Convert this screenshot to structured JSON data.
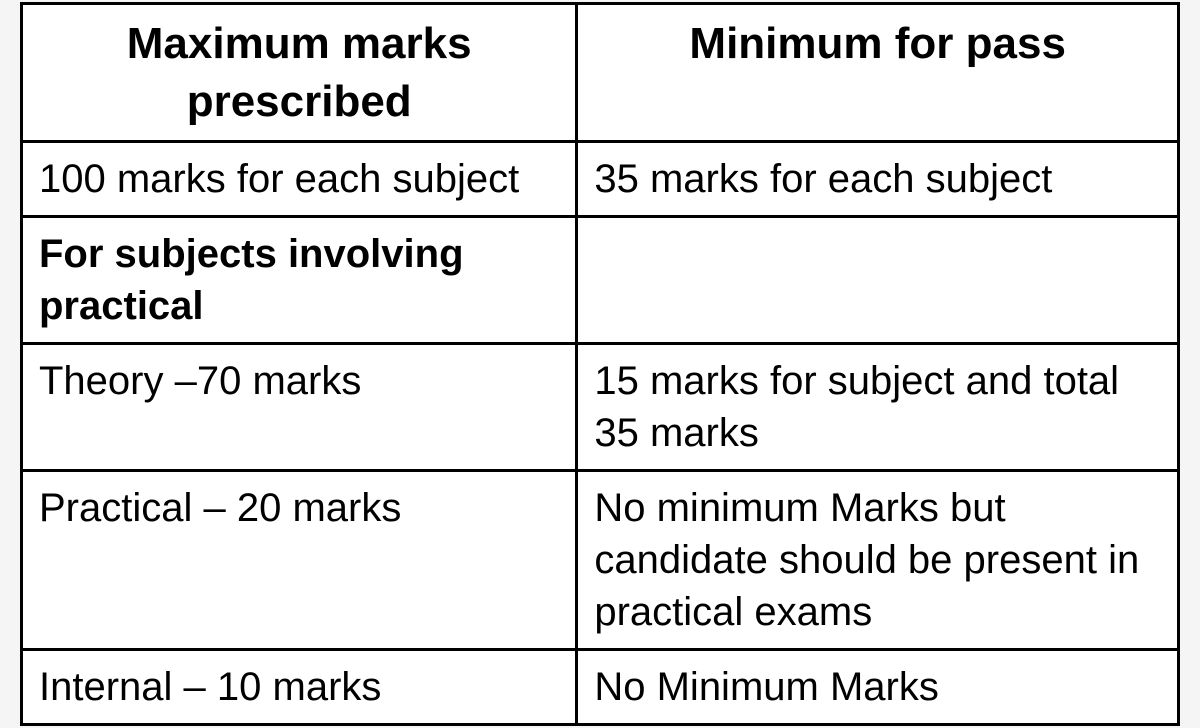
{
  "table": {
    "type": "table",
    "background_color": "#ffffff",
    "border_color": "#000000",
    "border_width": 3,
    "text_color": "#000000",
    "header_fontsize": 44,
    "body_fontsize": 40,
    "column_widths": [
      "48%",
      "52%"
    ],
    "columns": [
      "Maximum marks prescribed",
      "Minimum for pass"
    ],
    "rows": [
      {
        "cells": [
          "100 marks for each subject",
          "35 marks for each subject"
        ],
        "bold": [
          false,
          false
        ]
      },
      {
        "cells": [
          "For subjects involving practical",
          ""
        ],
        "bold": [
          true,
          false
        ]
      },
      {
        "cells": [
          "Theory –70 marks",
          "15 marks for subject and total 35 marks"
        ],
        "bold": [
          false,
          false
        ]
      },
      {
        "cells": [
          "Practical – 20 marks",
          "No minimum Marks but candidate should be present in practical exams"
        ],
        "bold": [
          false,
          false
        ]
      },
      {
        "cells": [
          "Internal – 10 marks",
          "No Minimum Marks"
        ],
        "bold": [
          false,
          false
        ]
      }
    ]
  }
}
